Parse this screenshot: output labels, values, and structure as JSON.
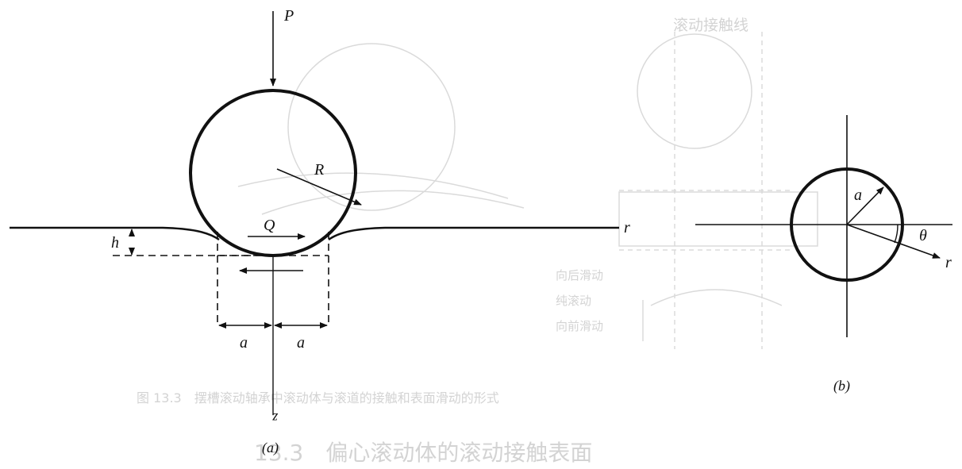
{
  "figure_a": {
    "load_label": "P",
    "radius_label": "R",
    "tangential_force_label": "Q",
    "indentation_label": "h",
    "contact_half_width_left": "a",
    "contact_half_width_right": "a",
    "radial_axis_label": "r",
    "depth_axis_label": "z",
    "panel_label": "(a)"
  },
  "figure_b": {
    "contact_radius_label": "a",
    "angle_label": "θ",
    "radial_axis_label": "r",
    "panel_label": "(b)"
  },
  "bleed_through": {
    "caption_text": "图 13.3　摆槽滚动轴承中滚动体与滚道的接触和表面滑动的形式",
    "heading_text": "13.3　偏心滚动体的滚动接触表面",
    "diagram_title": "滚动接触线",
    "side_label_1": "向后滑动",
    "side_label_2": "纯滚动",
    "side_label_3": "向前滑动"
  },
  "colors": {
    "ink": "#111111",
    "ghost": "#d4d4d4",
    "background": "#ffffff"
  }
}
